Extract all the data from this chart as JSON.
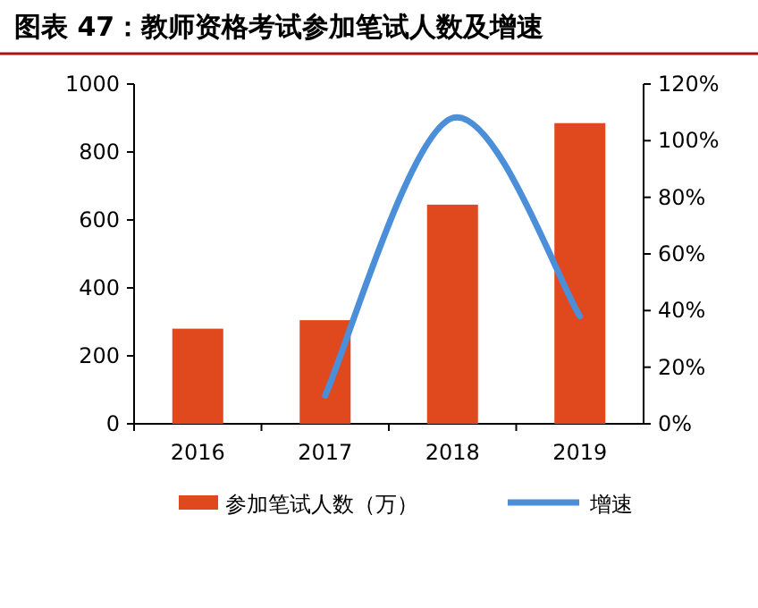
{
  "chart_data": {
    "type": "bar",
    "title": "图表 47：教师资格考试参加笔试人数及增速",
    "categories": [
      "2016",
      "2017",
      "2018",
      "2019"
    ],
    "series": [
      {
        "name": "参加笔试人数（万）",
        "color": "#e0481e",
        "values": [
          280,
          305,
          645,
          885
        ]
      },
      {
        "name": "增速",
        "type": "line",
        "axis": "y2",
        "color": "#4a8fd8",
        "values": [
          null,
          10,
          108,
          38
        ]
      }
    ],
    "ylim": [
      0,
      1000
    ],
    "yticks": [
      0,
      200,
      400,
      600,
      800,
      1000
    ],
    "y2lim": [
      0,
      120
    ],
    "y2ticks": [
      {
        "value": 0,
        "label": "0%"
      },
      {
        "value": 20,
        "label": "20%"
      },
      {
        "value": 40,
        "label": "40%"
      },
      {
        "value": 60,
        "label": "60%"
      },
      {
        "value": 80,
        "label": "80%"
      },
      {
        "value": 100,
        "label": "100%"
      },
      {
        "value": 120,
        "label": "120%"
      }
    ],
    "legend": "bottom",
    "grid": false
  }
}
